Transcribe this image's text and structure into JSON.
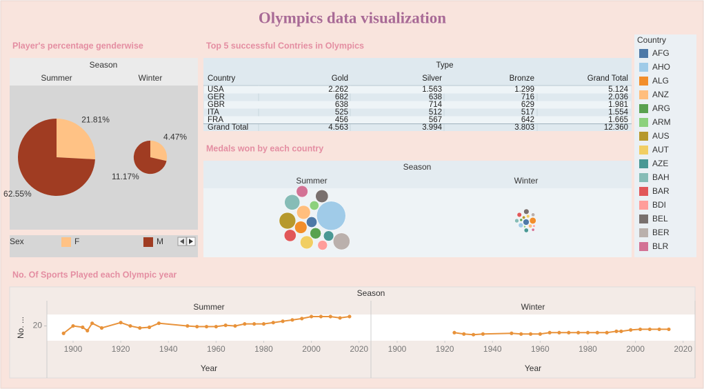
{
  "title": "Olympics data visualization",
  "chart_data": [
    {
      "type": "pie",
      "title": "Player's percentage genderwise",
      "facet_title": "Season",
      "categories": [
        "Summer",
        "Winter"
      ],
      "legend_title": "Sex",
      "series": [
        {
          "name": "F",
          "color": "#ffc285",
          "values": [
            21.81,
            4.47
          ],
          "value_labels": [
            "21.81%",
            "4.47%"
          ]
        },
        {
          "name": "M",
          "color": "#a03c22",
          "values": [
            62.55,
            11.17
          ],
          "value_labels": [
            "62.55%",
            "11.17%"
          ]
        }
      ]
    },
    {
      "type": "bubble",
      "title": "Medals won by each country",
      "facet_title": "Season",
      "legend_title": "Country",
      "categories": [
        "Summer",
        "Winter"
      ],
      "series": [
        {
          "name": "AFG",
          "color": "#4e79a7",
          "values": [
            120,
            40
          ]
        },
        {
          "name": "AHO",
          "color": "#a0cbe8",
          "values": [
            900,
            25
          ]
        },
        {
          "name": "ALG",
          "color": "#f28e2b",
          "values": [
            160,
            45
          ]
        },
        {
          "name": "ANZ",
          "color": "#ffbe7d",
          "values": [
            200,
            15
          ]
        },
        {
          "name": "ARG",
          "color": "#59a14f",
          "values": [
            130,
            8
          ]
        },
        {
          "name": "ARM",
          "color": "#8cd17d",
          "values": [
            90,
            5
          ]
        },
        {
          "name": "AUS",
          "color": "#b6992d",
          "values": [
            290,
            10
          ]
        },
        {
          "name": "AUT",
          "color": "#f1ce63",
          "values": [
            180,
            12
          ]
        },
        {
          "name": "AZE",
          "color": "#499894",
          "values": [
            110,
            20
          ]
        },
        {
          "name": "BAH",
          "color": "#86bcb6",
          "values": [
            250,
            18
          ]
        },
        {
          "name": "BAR",
          "color": "#e15759",
          "values": [
            150,
            22
          ]
        },
        {
          "name": "BDI",
          "color": "#ff9d9a",
          "values": [
            100,
            6
          ]
        },
        {
          "name": "BEL",
          "color": "#79706e",
          "values": [
            170,
            30
          ]
        },
        {
          "name": "BER",
          "color": "#bab0ac",
          "values": [
            300,
            14
          ]
        },
        {
          "name": "BLR",
          "color": "#d37295",
          "values": [
            140,
            9
          ]
        }
      ]
    },
    {
      "type": "line",
      "title": "No. Of Sports Played each Olympic year",
      "facet_title": "Season",
      "y_label": "No. ...",
      "x_label": "Year",
      "color": "#e8923a",
      "xlim": [
        1889,
        2025
      ],
      "xticks": [
        1900,
        1920,
        1940,
        1960,
        1980,
        2000,
        2020
      ],
      "ylim": [
        0,
        35
      ],
      "yticks": [
        20
      ],
      "panels": [
        {
          "name": "Summer",
          "x": [
            1896,
            1900,
            1904,
            1906,
            1908,
            1912,
            1920,
            1924,
            1928,
            1932,
            1936,
            1948,
            1952,
            1956,
            1960,
            1964,
            1968,
            1972,
            1976,
            1980,
            1984,
            1988,
            1992,
            1996,
            2000,
            2004,
            2008,
            2012,
            2016
          ],
          "values": [
            9,
            20,
            18,
            13,
            24,
            17,
            25,
            20,
            17,
            18,
            24,
            20,
            19,
            19,
            19,
            21,
            20,
            23,
            23,
            23,
            25,
            27,
            29,
            31,
            34,
            34,
            34,
            32,
            34
          ]
        },
        {
          "name": "Winter",
          "x": [
            1924,
            1928,
            1932,
            1936,
            1948,
            1952,
            1956,
            1960,
            1964,
            1968,
            1972,
            1976,
            1980,
            1984,
            1988,
            1992,
            1994,
            1998,
            2002,
            2006,
            2010,
            2014
          ],
          "values": [
            10,
            8,
            7,
            8,
            9,
            8,
            8,
            8,
            10,
            10,
            10,
            10,
            10,
            10,
            10,
            12,
            12,
            14,
            15,
            15,
            15,
            15
          ]
        }
      ]
    }
  ],
  "table": {
    "title": "Top 5 successful Contries in Olympics",
    "header": "Type",
    "columns": [
      "Country",
      "Gold",
      "Silver",
      "Bronze",
      "Grand Total"
    ],
    "rows": [
      [
        "USA",
        "2.262",
        "1.563",
        "1.299",
        "5.124"
      ],
      [
        "GER",
        "682",
        "638",
        "716",
        "2.036"
      ],
      [
        "GBR",
        "638",
        "714",
        "629",
        "1.981"
      ],
      [
        "ITA",
        "525",
        "512",
        "517",
        "1.554"
      ],
      [
        "FRA",
        "456",
        "567",
        "642",
        "1.665"
      ],
      [
        "Grand Total",
        "4.563",
        "3.994",
        "3.803",
        "12.360"
      ]
    ]
  }
}
